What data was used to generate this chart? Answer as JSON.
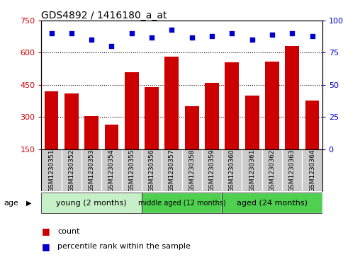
{
  "title": "GDS4892 / 1416180_a_at",
  "categories": [
    "GSM1230351",
    "GSM1230352",
    "GSM1230353",
    "GSM1230354",
    "GSM1230355",
    "GSM1230356",
    "GSM1230357",
    "GSM1230358",
    "GSM1230359",
    "GSM1230360",
    "GSM1230361",
    "GSM1230362",
    "GSM1230363",
    "GSM1230364"
  ],
  "counts": [
    420,
    410,
    305,
    265,
    510,
    440,
    580,
    350,
    460,
    555,
    400,
    560,
    630,
    375
  ],
  "percentiles": [
    90,
    90,
    85,
    80,
    90,
    87,
    93,
    87,
    88,
    90,
    85,
    89,
    90,
    88
  ],
  "ylim_left": [
    150,
    750
  ],
  "ylim_right": [
    0,
    100
  ],
  "yticks_left": [
    150,
    300,
    450,
    600,
    750
  ],
  "yticks_right": [
    0,
    25,
    50,
    75,
    100
  ],
  "bar_color": "#cc0000",
  "dot_color": "#0000cc",
  "grid_yticks": [
    300,
    450,
    600
  ],
  "tick_area_color": "#cccccc",
  "groups": [
    {
      "label": "young (2 months)",
      "start": 0,
      "end": 4,
      "color": "#c8f0c8"
    },
    {
      "label": "middle aged (12 months)",
      "start": 5,
      "end": 8,
      "color": "#50d050"
    },
    {
      "label": "aged (24 months)",
      "start": 9,
      "end": 13,
      "color": "#50d050"
    }
  ],
  "legend_count_label": "count",
  "legend_pct_label": "percentile rank within the sample",
  "age_label": "age",
  "left_axis_color": "#cc0000",
  "right_axis_color": "#0000cc"
}
